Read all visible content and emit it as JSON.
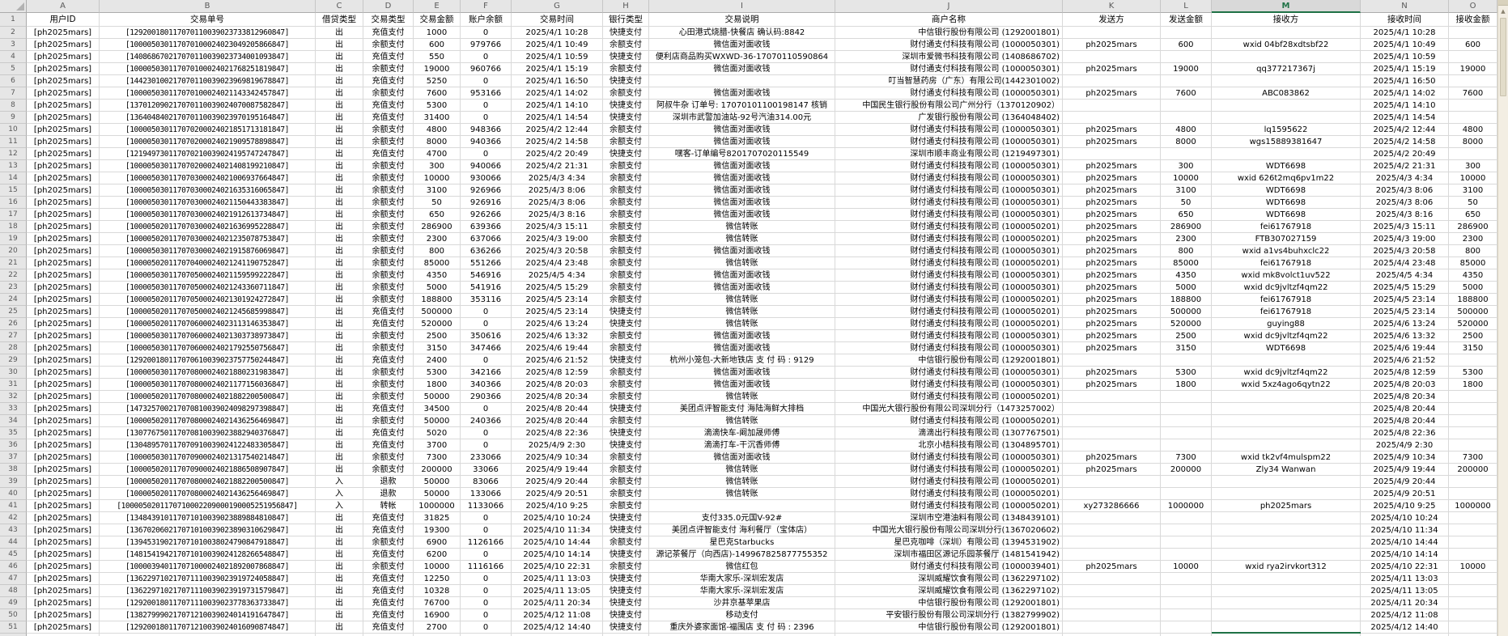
{
  "sheet": {
    "column_letters": [
      "A",
      "B",
      "C",
      "D",
      "E",
      "F",
      "G",
      "H",
      "I",
      "J",
      "K",
      "L",
      "M",
      "N",
      "O"
    ],
    "field_headers": [
      "用户ID",
      "交易单号",
      "借贷类型",
      "交易类型",
      "交易金额",
      "账户余额",
      "交易时间",
      "银行类型",
      "交易说明",
      "商户名称",
      "发送方",
      "发送金额",
      "接收方",
      "接收时间",
      "接收金额"
    ],
    "first_data_row_number": 2,
    "selection": {
      "active_column": "M",
      "active_row": 52
    },
    "rows": [
      [
        "[ph2025mars]",
        "[129200180117070110039023733812960847]",
        "出",
        "充值支付",
        "1000",
        "0",
        "2025/4/1 10:28",
        "快捷支付",
        "心田港式烧腊-快餐店 确认码:8842",
        "中信银行股份有限公司 (1292001801)",
        "",
        "",
        "",
        "2025/4/1 10:28",
        ""
      ],
      [
        "[ph2025mars]",
        "[100005030117070100024023049205866847]",
        "出",
        "余额支付",
        "600",
        "979766",
        "2025/4/1 10:49",
        "余额支付",
        "微信面对面收钱",
        "财付通支付科技有限公司 (1000050301)",
        "ph2025mars",
        "600",
        "wxid 04bf28xdtsbf22",
        "2025/4/1 10:49",
        "600"
      ],
      [
        "[ph2025mars]",
        "[140868670217070110039023734001093847]",
        "出",
        "充值支付",
        "550",
        "0",
        "2025/4/1 10:59",
        "快捷支付",
        "便利店商品购买WXWD-36-17070110590864",
        "深圳市爱微书科技有限公司 (1408686702)",
        "",
        "",
        "",
        "2025/4/1 10:59",
        ""
      ],
      [
        "[ph2025mars]",
        "[100005030117070100024021768251819847]",
        "出",
        "余额支付",
        "19000",
        "960766",
        "2025/4/1 15:19",
        "余额支付",
        "微信面对面收钱",
        "财付通支付科技有限公司 (1000050301)",
        "ph2025mars",
        "19000",
        "qq377217367j",
        "2025/4/1 15:19",
        "19000"
      ],
      [
        "[ph2025mars]",
        "[144230100217070110039023969819678847]",
        "出",
        "充值支付",
        "5250",
        "0",
        "2025/4/1 16:50",
        "快捷支付",
        "",
        "叮当智慧药房（广东）有限公司(1442301002)",
        "",
        "",
        "",
        "2025/4/1 16:50",
        ""
      ],
      [
        "[ph2025mars]",
        "[100005030117070100024021143342457847]",
        "出",
        "余额支付",
        "7600",
        "953166",
        "2025/4/1 14:02",
        "余额支付",
        "微信面对面收钱",
        "财付通支付科技有限公司 (1000050301)",
        "ph2025mars",
        "7600",
        "ABC083862",
        "2025/4/1 14:02",
        "7600"
      ],
      [
        "[ph2025mars]",
        "[137012090217070110039024070087582847]",
        "出",
        "充值支付",
        "5300",
        "0",
        "2025/4/1 14:10",
        "快捷支付",
        "阿叔牛杂 订单号: 17070101100198147 核销",
        "中国民生银行股份有限公司广州分行（1370120902）",
        "",
        "",
        "",
        "2025/4/1 14:10",
        ""
      ],
      [
        "[ph2025mars]",
        "[136404840217070110039023970195164847]",
        "出",
        "充值支付",
        "31400",
        "0",
        "2025/4/1 14:54",
        "快捷支付",
        "深圳市武警加油站-92号汽油314.00元",
        "广发银行股份有限公司 (1364048402)",
        "",
        "",
        "",
        "2025/4/1 14:54",
        ""
      ],
      [
        "[ph2025mars]",
        "[100005030117070200024021851713181847]",
        "出",
        "余额支付",
        "4800",
        "948366",
        "2025/4/2 12:44",
        "余额支付",
        "微信面对面收钱",
        "财付通支付科技有限公司 (1000050301)",
        "ph2025mars",
        "4800",
        "lq1595622",
        "2025/4/2 12:44",
        "4800"
      ],
      [
        "[ph2025mars]",
        "[100005030117070200024021909578898847]",
        "出",
        "余额支付",
        "8000",
        "940366",
        "2025/4/2 14:58",
        "余额支付",
        "微信面对面收钱",
        "财付通支付科技有限公司 (1000050301)",
        "ph2025mars",
        "8000",
        "wgs15889381647",
        "2025/4/2 14:58",
        "8000"
      ],
      [
        "[ph2025mars]",
        "[121949730117070210039024195747247847]",
        "出",
        "充值支付",
        "4700",
        "0",
        "2025/4/2 20:49",
        "快捷支付",
        "嘿客-订单编号8201707020115549",
        "深圳市顺丰商业有限公司 (1219497301)",
        "",
        "",
        "",
        "2025/4/2 20:49",
        ""
      ],
      [
        "[ph2025mars]",
        "[100005030117070200024021408199210847]",
        "出",
        "余额支付",
        "300",
        "940066",
        "2025/4/2 21:31",
        "余额支付",
        "微信面对面收钱",
        "财付通支付科技有限公司 (1000050301)",
        "ph2025mars",
        "300",
        "WDT6698",
        "2025/4/2 21:31",
        "300"
      ],
      [
        "[ph2025mars]",
        "[100005030117070300024021006937664847]",
        "出",
        "余额支付",
        "10000",
        "930066",
        "2025/4/3 4:34",
        "余额支付",
        "微信面对面收钱",
        "财付通支付科技有限公司 (1000050301)",
        "ph2025mars",
        "10000",
        "wxid 626t2mq6pv1m22",
        "2025/4/3 4:34",
        "10000"
      ],
      [
        "[ph2025mars]",
        "[100005030117070300024021635316065847]",
        "出",
        "余额支付",
        "3100",
        "926966",
        "2025/4/3 8:06",
        "余额支付",
        "微信面对面收钱",
        "财付通支付科技有限公司 (1000050301)",
        "ph2025mars",
        "3100",
        "WDT6698",
        "2025/4/3 8:06",
        "3100"
      ],
      [
        "[ph2025mars]",
        "[100005030117070300024021150443383847]",
        "出",
        "余额支付",
        "50",
        "926916",
        "2025/4/3 8:06",
        "余额支付",
        "微信面对面收钱",
        "财付通支付科技有限公司 (1000050301)",
        "ph2025mars",
        "50",
        "WDT6698",
        "2025/4/3 8:06",
        "50"
      ],
      [
        "[ph2025mars]",
        "[100005030117070300024021912613734847]",
        "出",
        "余额支付",
        "650",
        "926266",
        "2025/4/3 8:16",
        "余额支付",
        "微信面对面收钱",
        "财付通支付科技有限公司 (1000050301)",
        "ph2025mars",
        "650",
        "WDT6698",
        "2025/4/3 8:16",
        "650"
      ],
      [
        "[ph2025mars]",
        "[100005020117070300024021636995228847]",
        "出",
        "余额支付",
        "286900",
        "639366",
        "2025/4/3 15:11",
        "余额支付",
        "微信转账",
        "财付通支付科技有限公司 (1000050201)",
        "ph2025mars",
        "286900",
        "fei61767918",
        "2025/4/3 15:11",
        "286900"
      ],
      [
        "[ph2025mars]",
        "[100005020117070300024021235078753847]",
        "出",
        "余额支付",
        "2300",
        "637066",
        "2025/4/3 19:00",
        "余额支付",
        "微信转账",
        "财付通支付科技有限公司 (1000050201)",
        "ph2025mars",
        "2300",
        "FTB307027159",
        "2025/4/3 19:00",
        "2300"
      ],
      [
        "[ph2025mars]",
        "[100005030117070300024021915876069847]",
        "出",
        "余额支付",
        "800",
        "636266",
        "2025/4/3 20:58",
        "余额支付",
        "微信面对面收钱",
        "财付通支付科技有限公司 (1000050301)",
        "ph2025mars",
        "800",
        "wxid a1vs4buhxclc22",
        "2025/4/3 20:58",
        "800"
      ],
      [
        "[ph2025mars]",
        "[100005020117070400024021241190752847]",
        "出",
        "余额支付",
        "85000",
        "551266",
        "2025/4/4 23:48",
        "余额支付",
        "微信转账",
        "财付通支付科技有限公司 (1000050201)",
        "ph2025mars",
        "85000",
        "fei61767918",
        "2025/4/4 23:48",
        "85000"
      ],
      [
        "[ph2025mars]",
        "[100005030117070500024021159599222847]",
        "出",
        "余额支付",
        "4350",
        "546916",
        "2025/4/5 4:34",
        "余额支付",
        "微信面对面收钱",
        "财付通支付科技有限公司 (1000050301)",
        "ph2025mars",
        "4350",
        "wxid mk8volct1uv522",
        "2025/4/5 4:34",
        "4350"
      ],
      [
        "[ph2025mars]",
        "[100005030117070500024021243360711847]",
        "出",
        "余额支付",
        "5000",
        "541916",
        "2025/4/5 15:29",
        "余额支付",
        "微信面对面收钱",
        "财付通支付科技有限公司 (1000050301)",
        "ph2025mars",
        "5000",
        "wxid dc9jvltzf4qm22",
        "2025/4/5 15:29",
        "5000"
      ],
      [
        "[ph2025mars]",
        "[100005020117070500024021301924272847]",
        "出",
        "余额支付",
        "188800",
        "353116",
        "2025/4/5 23:14",
        "余额支付",
        "微信转账",
        "财付通支付科技有限公司 (1000050201)",
        "ph2025mars",
        "188800",
        "fei61767918",
        "2025/4/5 23:14",
        "188800"
      ],
      [
        "[ph2025mars]",
        "[100005020117070500024021245685998847]",
        "出",
        "充值支付",
        "500000",
        "0",
        "2025/4/5 23:14",
        "快捷支付",
        "微信转账",
        "财付通支付科技有限公司 (1000050201)",
        "ph2025mars",
        "500000",
        "fei61767918",
        "2025/4/5 23:14",
        "500000"
      ],
      [
        "[ph2025mars]",
        "[100005020117070600024023113146353847]",
        "出",
        "充值支付",
        "520000",
        "0",
        "2025/4/6 13:24",
        "快捷支付",
        "微信转账",
        "财付通支付科技有限公司 (1000050201)",
        "ph2025mars",
        "520000",
        "guying88",
        "2025/4/6 13:24",
        "520000"
      ],
      [
        "[ph2025mars]",
        "[100005030117070600024021303738973847]",
        "出",
        "余额支付",
        "2500",
        "350616",
        "2025/4/6 13:32",
        "余额支付",
        "微信面对面收钱",
        "财付通支付科技有限公司 (1000050301)",
        "ph2025mars",
        "2500",
        "wxid dc9jvltzf4qm22",
        "2025/4/6 13:32",
        "2500"
      ],
      [
        "[ph2025mars]",
        "[100005030117070600024021792550756847]",
        "出",
        "余额支付",
        "3150",
        "347466",
        "2025/4/6 19:44",
        "余额支付",
        "微信面对面收钱",
        "财付通支付科技有限公司 (1000050301)",
        "ph2025mars",
        "3150",
        "WDT6698",
        "2025/4/6 19:44",
        "3150"
      ],
      [
        "[ph2025mars]",
        "[129200180117070610039023757750244847]",
        "出",
        "充值支付",
        "2400",
        "0",
        "2025/4/6 21:52",
        "快捷支付",
        "杭州小笼包-大新地铁店 支 付 码 : 9129",
        "中信银行股份有限公司 (1292001801)",
        "",
        "",
        "",
        "2025/4/6 21:52",
        ""
      ],
      [
        "[ph2025mars]",
        "[100005030117070800024021880231983847]",
        "出",
        "余额支付",
        "5300",
        "342166",
        "2025/4/8 12:59",
        "余额支付",
        "微信面对面收钱",
        "财付通支付科技有限公司 (1000050301)",
        "ph2025mars",
        "5300",
        "wxid dc9jvltzf4qm22",
        "2025/4/8 12:59",
        "5300"
      ],
      [
        "[ph2025mars]",
        "[100005030117070800024021177156036847]",
        "出",
        "余额支付",
        "1800",
        "340366",
        "2025/4/8 20:03",
        "余额支付",
        "微信面对面收钱",
        "财付通支付科技有限公司 (1000050301)",
        "ph2025mars",
        "1800",
        "wxid 5xz4ago6qytn22",
        "2025/4/8 20:03",
        "1800"
      ],
      [
        "[ph2025mars]",
        "[100005020117070800024021882200500847]",
        "出",
        "余额支付",
        "50000",
        "290366",
        "2025/4/8 20:34",
        "余额支付",
        "微信转账",
        "财付通支付科技有限公司 (1000050201)",
        "",
        "",
        "",
        "2025/4/8 20:34",
        ""
      ],
      [
        "[ph2025mars]",
        "[147325700217070810039024098297398847]",
        "出",
        "充值支付",
        "34500",
        "0",
        "2025/4/8 20:44",
        "快捷支付",
        "美团点评智能支付 海陆海鲜大排档",
        "中国光大银行股份有限公司深圳分行（1473257002）",
        "",
        "",
        "",
        "2025/4/8 20:44",
        ""
      ],
      [
        "[ph2025mars]",
        "[100005020117070800024021436256469847]",
        "出",
        "余额支付",
        "50000",
        "240366",
        "2025/4/8 20:44",
        "余额支付",
        "微信转账",
        "财付通支付科技有限公司 (1000050201)",
        "",
        "",
        "",
        "2025/4/8 20:44",
        ""
      ],
      [
        "[ph2025mars]",
        "[130776750117070810039023882940376847]",
        "出",
        "充值支付",
        "5020",
        "0",
        "2025/4/8 22:36",
        "快捷支付",
        "滴滴快车-阚加晟师傅",
        "滴滴出行科技有限公司 (1307767501)",
        "",
        "",
        "",
        "2025/4/8 22:36",
        ""
      ],
      [
        "[ph2025mars]",
        "[130489570117070910039024122483305847]",
        "出",
        "充值支付",
        "3700",
        "0",
        "2025/4/9 2:30",
        "快捷支付",
        "滴滴打车-干沉香师傅",
        "北京小桔科技有限公司 (1304895701)",
        "",
        "",
        "",
        "2025/4/9 2:30",
        ""
      ],
      [
        "[ph2025mars]",
        "[100005030117070900024021317540214847]",
        "出",
        "余额支付",
        "7300",
        "233066",
        "2025/4/9 10:34",
        "余额支付",
        "微信面对面收钱",
        "财付通支付科技有限公司 (1000050301)",
        "ph2025mars",
        "7300",
        "wxid tk2vf4mulspm22",
        "2025/4/9 10:34",
        "7300"
      ],
      [
        "[ph2025mars]",
        "[100005020117070900024021886508907847]",
        "出",
        "余额支付",
        "200000",
        "33066",
        "2025/4/9 19:44",
        "余额支付",
        "微信转账",
        "财付通支付科技有限公司 (1000050201)",
        "ph2025mars",
        "200000",
        "Zly34 Wanwan",
        "2025/4/9 19:44",
        "200000"
      ],
      [
        "[ph2025mars]",
        "[100005020117070800024021882200500847]",
        "入",
        "退款",
        "50000",
        "83066",
        "2025/4/9 20:44",
        "余额支付",
        "微信转账",
        "财付通支付科技有限公司 (1000050201)",
        "",
        "",
        "",
        "2025/4/9 20:44",
        ""
      ],
      [
        "[ph2025mars]",
        "[100005020117070800024021436256469847]",
        "入",
        "退款",
        "50000",
        "133066",
        "2025/4/9 20:51",
        "余额支付",
        "微信转账",
        "财付通支付科技有限公司 (1000050201)",
        "",
        "",
        "",
        "2025/4/9 20:51",
        ""
      ],
      [
        "[ph2025mars]",
        "[1000050201170710002209000190005251956847]",
        "入",
        "转帐",
        "1000000",
        "1133066",
        "2025/4/10 9:25",
        "余额支付",
        "",
        "财付通支付科技有限公司 (1000050201)",
        "xy273286666",
        "1000000",
        "ph2025mars",
        "2025/4/10 9:25",
        "1000000"
      ],
      [
        "[ph2025mars]",
        "[134843910117071010039023889884810847]",
        "出",
        "充值支付",
        "31825",
        "0",
        "2025/4/10 10:24",
        "快捷支付",
        "支付335.0元国V-92#",
        "深圳市空港油料有限公司 (1348439101)",
        "",
        "",
        "",
        "2025/4/10 10:24",
        ""
      ],
      [
        "[ph2025mars]",
        "[136702060217071010039023890310629847]",
        "出",
        "充值支付",
        "19300",
        "0",
        "2025/4/10 11:34",
        "快捷支付",
        "美团点评智能支付 海利餐厅（宝体店）",
        "中国光大银行股份有限公司深圳分行(1367020602)",
        "",
        "",
        "",
        "2025/4/10 11:34",
        ""
      ],
      [
        "[ph2025mars]",
        "[139453190217071010038024790847918847]",
        "出",
        "余额支付",
        "6900",
        "1126166",
        "2025/4/10 14:44",
        "余额支付",
        "星巴克Starbucks",
        "星巴克咖啡（深圳）有限公司 (1394531902)",
        "",
        "",
        "",
        "2025/4/10 14:44",
        ""
      ],
      [
        "[ph2025mars]",
        "[148154194217071010039024128266548847]",
        "出",
        "充值支付",
        "6200",
        "0",
        "2025/4/10 14:14",
        "快捷支付",
        "源记茶餐厅（向西店)-149967825877755352",
        "深圳市福田区源记乐园茶餐厅 (1481541942)",
        "",
        "",
        "",
        "2025/4/10 14:14",
        ""
      ],
      [
        "[ph2025mars]",
        "[100003940117071000024021892007868847]",
        "出",
        "余额支付",
        "10000",
        "1116166",
        "2025/4/10 22:31",
        "余额支付",
        "微信红包",
        "财付通支付科技有限公司 (1000039401)",
        "ph2025mars",
        "10000",
        "wxid rya2irvkort312",
        "2025/4/10 22:31",
        "10000"
      ],
      [
        "[ph2025mars]",
        "[136229710217071110039023919724058847]",
        "出",
        "充值支付",
        "12250",
        "0",
        "2025/4/11 13:03",
        "快捷支付",
        "华南大家乐-深圳宏发店",
        "深圳威耀饮食有限公司 (1362297102)",
        "",
        "",
        "",
        "2025/4/11 13:03",
        ""
      ],
      [
        "[ph2025mars]",
        "[136229710217071110039023919731579847]",
        "出",
        "充值支付",
        "10328",
        "0",
        "2025/4/11 13:05",
        "快捷支付",
        "华南大家乐-深圳宏发店",
        "深圳威耀饮食有限公司 (1362297102)",
        "",
        "",
        "",
        "2025/4/11 13:05",
        ""
      ],
      [
        "[ph2025mars]",
        "[129200180117071110039023778363733847]",
        "出",
        "充值支付",
        "76700",
        "0",
        "2025/4/11 20:34",
        "快捷支付",
        "沙井京基苹果店",
        "中信银行股份有限公司 (1292001801)",
        "",
        "",
        "",
        "2025/4/11 20:34",
        ""
      ],
      [
        "[ph2025mars]",
        "[138279990217071210039024014191647847]",
        "出",
        "充值支付",
        "16900",
        "0",
        "2025/4/12 11:08",
        "快捷支付",
        "移动支付",
        "平安银行股份有限公司深圳分行 (1382799902)",
        "",
        "",
        "",
        "2025/4/12 11:08",
        ""
      ],
      [
        "[ph2025mars]",
        "[129200180117071210039024016090874847]",
        "出",
        "充值支付",
        "2700",
        "0",
        "2025/4/12 14:40",
        "快捷支付",
        "重庆外婆家面馆-福围店 支 付 码 : 2396",
        "中信银行股份有限公司 (1292001801)",
        "",
        "",
        "",
        "2025/4/12 14:40",
        ""
      ]
    ]
  },
  "icons": {
    "scroll_up": "▲",
    "select_all": "select-all-triangle"
  },
  "colors": {
    "accent_green": "#1f7246",
    "header_bg": "#e6e6e6",
    "gridline": "#d9d9d9"
  }
}
